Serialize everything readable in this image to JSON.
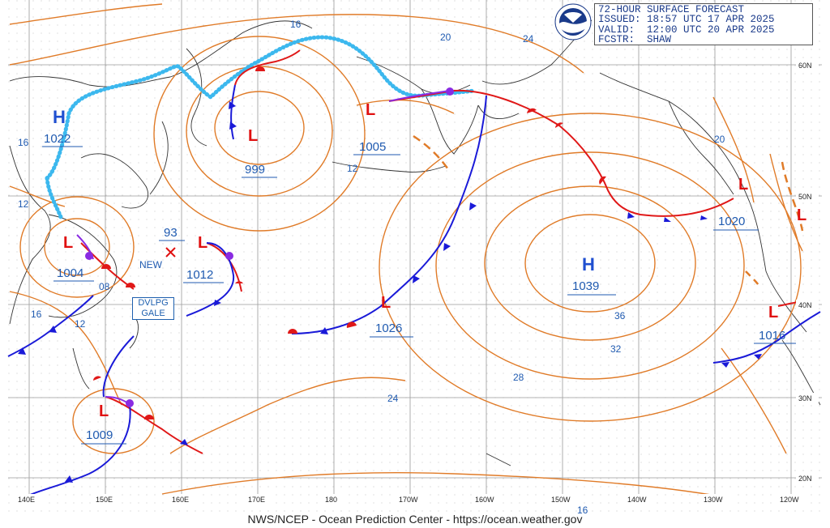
{
  "info": {
    "title": "72-HOUR SURFACE FORECAST",
    "issued": "ISSUED: 18:57 UTC 17 APR 2025",
    "valid": "VALID:  12:00 UTC 20 APR 2025",
    "fcstr": "FCSTR:  SHAW"
  },
  "logo_text": "NOAA",
  "footer": "NWS/NCEP - Ocean Prediction Center - https://ocean.weather.gov",
  "gale": {
    "line1": "DVLPG",
    "line2": "GALE"
  },
  "new_label": "NEW",
  "storm_number": "93",
  "lon_labels": [
    "140E",
    "150E",
    "160E",
    "170E",
    "180",
    "170W",
    "160W",
    "150W",
    "140W",
    "130W",
    "120W"
  ],
  "lat_labels": [
    "60N",
    "50N",
    "40N",
    "30N",
    "20N"
  ],
  "highs": [
    {
      "letter": "H",
      "pressure": "1022"
    },
    {
      "letter": "H",
      "pressure": "1039"
    }
  ],
  "lows": [
    {
      "letter": "L",
      "pressure": "999"
    },
    {
      "letter": "L",
      "pressure": "1005"
    },
    {
      "letter": "L",
      "pressure": "1004"
    },
    {
      "letter": "L",
      "pressure": "1012"
    },
    {
      "letter": "L",
      "pressure": "1026"
    },
    {
      "letter": "L",
      "pressure": "1009"
    },
    {
      "letter": "L",
      "pressure": "1020"
    },
    {
      "letter": "L",
      "pressure": "1016"
    }
  ],
  "isobar_labels": [
    "16",
    "20",
    "24",
    "12",
    "16",
    "12",
    "08",
    "16",
    "12",
    "36",
    "32",
    "28",
    "24",
    "20",
    "16"
  ],
  "colors": {
    "isobar": "#e07b28",
    "cold_front": "#1a1ad8",
    "warm_front": "#e01818",
    "occluded": "#8a2be2",
    "ice_edge": "#3cb8ee",
    "grid": "#9a9a9a",
    "coast": "#333333"
  }
}
